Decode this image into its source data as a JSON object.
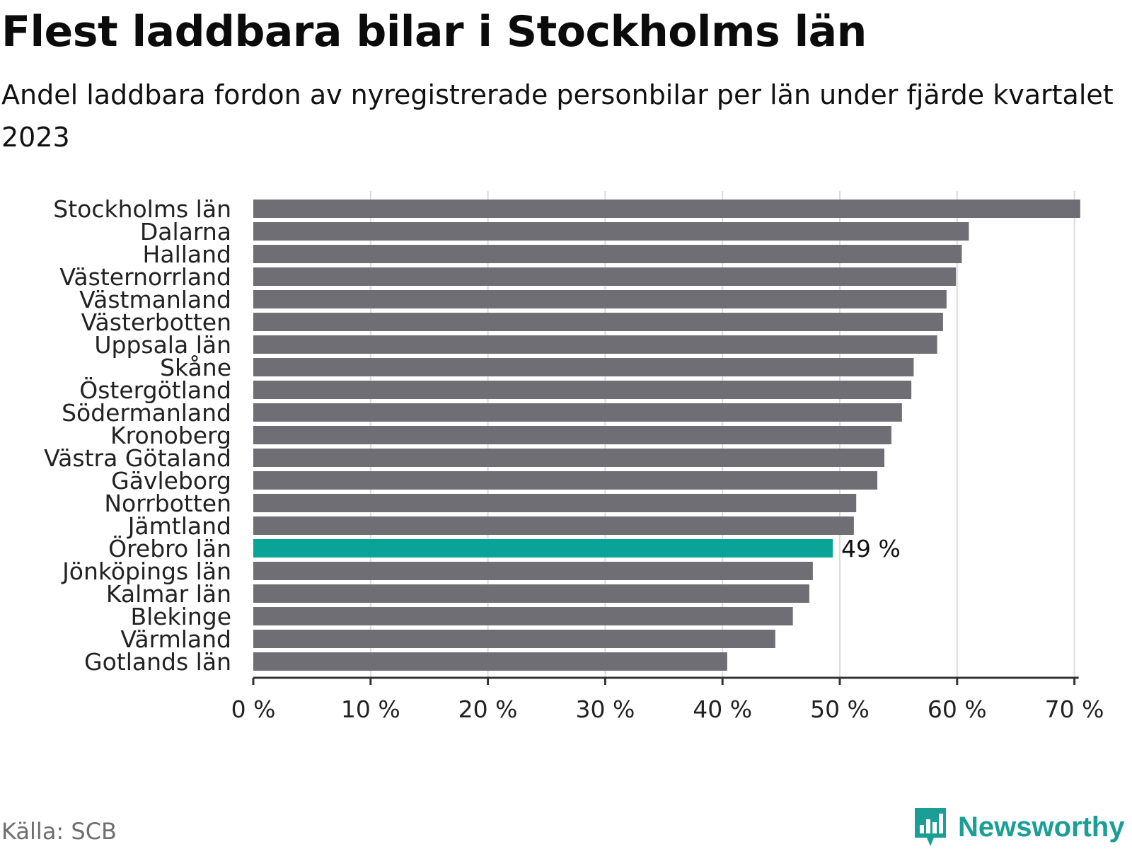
{
  "chart_data": {
    "type": "bar",
    "orientation": "horizontal",
    "title": "Flest laddbara bilar i Stockholms län",
    "subtitle": "Andel laddbara fordon av nyregistrerade personbilar per län under fjärde kvartalet 2023",
    "categories": [
      "Stockholms län",
      "Dalarna",
      "Halland",
      "Västernorrland",
      "Västmanland",
      "Västerbotten",
      "Uppsala län",
      "Skåne",
      "Östergötland",
      "Södermanland",
      "Kronoberg",
      "Västra Götaland",
      "Gävleborg",
      "Norrbotten",
      "Jämtland",
      "Örebro län",
      "Jönköpings län",
      "Kalmar län",
      "Blekinge",
      "Värmland",
      "Gotlands län"
    ],
    "values": [
      70.5,
      61,
      60.4,
      59.9,
      59.1,
      58.8,
      58.3,
      56.3,
      56.1,
      55.3,
      54.4,
      53.8,
      53.2,
      51.4,
      51.2,
      49.4,
      47.7,
      47.4,
      46,
      44.5,
      40.4
    ],
    "highlight": {
      "category": "Örebro län",
      "label": "49 %"
    },
    "xlim": [
      0,
      70
    ],
    "xticks": [
      0,
      10,
      20,
      30,
      40,
      50,
      60,
      70
    ],
    "xtick_labels": [
      "0 %",
      "10 %",
      "20 %",
      "30 %",
      "40 %",
      "50 %",
      "60 %",
      "70 %"
    ],
    "grid": true,
    "colors": {
      "bar": "#6f6e75",
      "highlight": "#0aa398",
      "grid": "#dcdcdc",
      "axis": "#333333",
      "tick_label": "#222222"
    }
  },
  "footer": {
    "source": "Källa: SCB",
    "brand": "Newsworthy",
    "brand_color": "#1b9e96",
    "brand_icon": "bar-chart-speech-bubble-icon"
  }
}
